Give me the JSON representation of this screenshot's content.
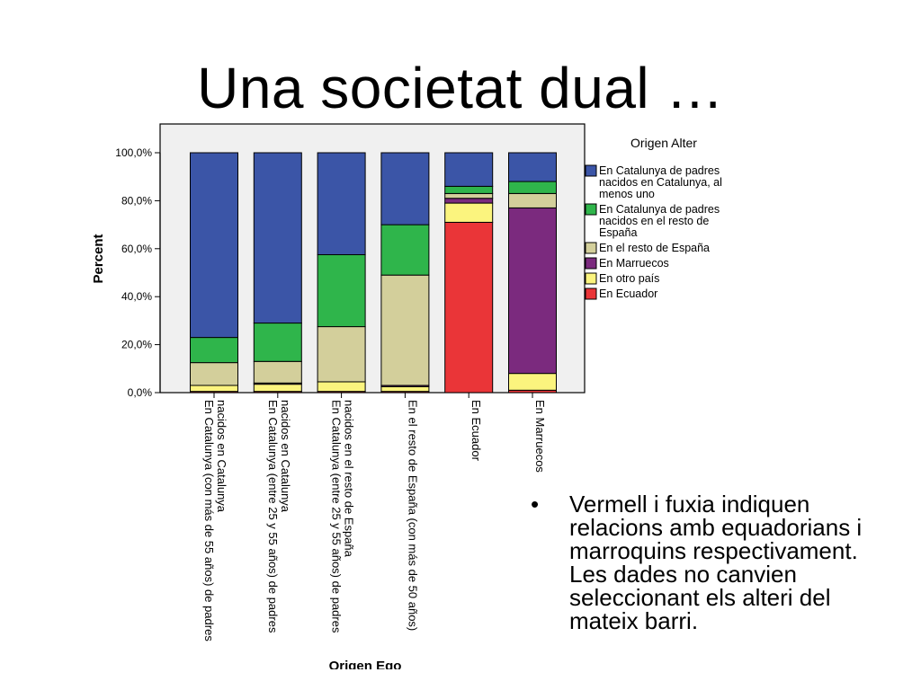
{
  "slide": {
    "title": "Una societat dual …",
    "bullet_marker": "•",
    "bullet": "Vermell i fuxia indiquen relacions amb equadorians i marroquins respectivament. Les dades no canvien seleccionant els alteri del mateix barri."
  },
  "chart_data": {
    "type": "bar",
    "stacked": true,
    "title": "",
    "xlabel": "Origen Ego",
    "ylabel": "Percent",
    "ylim": [
      0,
      100
    ],
    "y_ticks": [
      "0,0%",
      "20,0%",
      "40,0%",
      "60,0%",
      "80,0%",
      "100,0%"
    ],
    "legend_title": "Origen Alter",
    "legend_position": "right",
    "categories": [
      "En Catalunya (con más de 55 años) de padres nacidos en Catalunya",
      "En Catalunya (entre 25 y 55 años) de padres nacidos en Catalunya",
      "En Catalunya (entre 25 y 55 años) de padres nacidos en el resto de España",
      "En el resto de España (con más de 50 años)",
      "En Ecuador",
      "En Marruecos"
    ],
    "series": [
      {
        "name": "En Ecuador",
        "color": "#ea3538",
        "values": [
          0.5,
          0.5,
          0.5,
          0.5,
          71,
          1
        ]
      },
      {
        "name": "En otro país",
        "color": "#fbf47e",
        "values": [
          2.5,
          3,
          4,
          2,
          8,
          7
        ]
      },
      {
        "name": "En Marruecos",
        "color": "#7b2a7e",
        "values": [
          0,
          0.5,
          0,
          0.5,
          2,
          69
        ]
      },
      {
        "name": "En el resto de España",
        "color": "#d3cf9b",
        "values": [
          9.5,
          9,
          23,
          46,
          2,
          6
        ]
      },
      {
        "name": "En Catalunya de padres nacidos en el resto de España",
        "color": "#2fb54b",
        "values": [
          10.5,
          16,
          30,
          21,
          3,
          5
        ]
      },
      {
        "name": "En Catalunya de padres nacidos en Catalunya, al menos uno",
        "color": "#3b55a7",
        "values": [
          77,
          71,
          42.5,
          30,
          14,
          12
        ]
      }
    ]
  }
}
